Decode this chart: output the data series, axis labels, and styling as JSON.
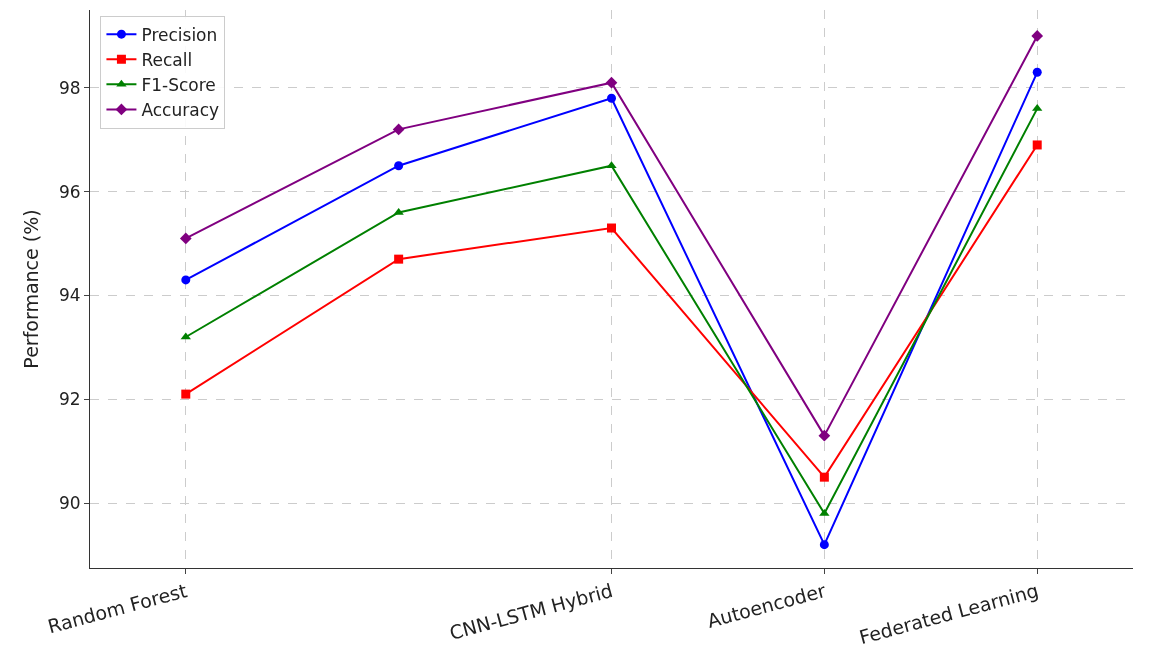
{
  "chart_data": {
    "type": "line",
    "ylabel": "Performance (%)",
    "categories": [
      "Random Forest",
      null,
      "CNN-LSTM Hybrid",
      "Autoencoder",
      "Federated Learning"
    ],
    "series": [
      {
        "name": "Precision",
        "color": "#0000ff",
        "marker": "circle",
        "values": [
          94.3,
          96.5,
          97.8,
          89.2,
          98.3
        ]
      },
      {
        "name": "Recall",
        "color": "#ff0000",
        "marker": "square",
        "values": [
          92.1,
          94.7,
          95.3,
          90.5,
          96.9
        ]
      },
      {
        "name": "F1-Score",
        "color": "#008000",
        "marker": "triangle",
        "values": [
          93.2,
          95.6,
          96.5,
          89.8,
          97.6
        ]
      },
      {
        "name": "Accuracy",
        "color": "#800080",
        "marker": "diamond",
        "values": [
          95.1,
          97.2,
          98.1,
          91.3,
          99.0
        ]
      }
    ],
    "ylim": [
      88.75,
      99.5
    ],
    "yticks": [
      90,
      92,
      94,
      96,
      98
    ],
    "grid": true,
    "legend": "top left",
    "line_style": "solid"
  }
}
